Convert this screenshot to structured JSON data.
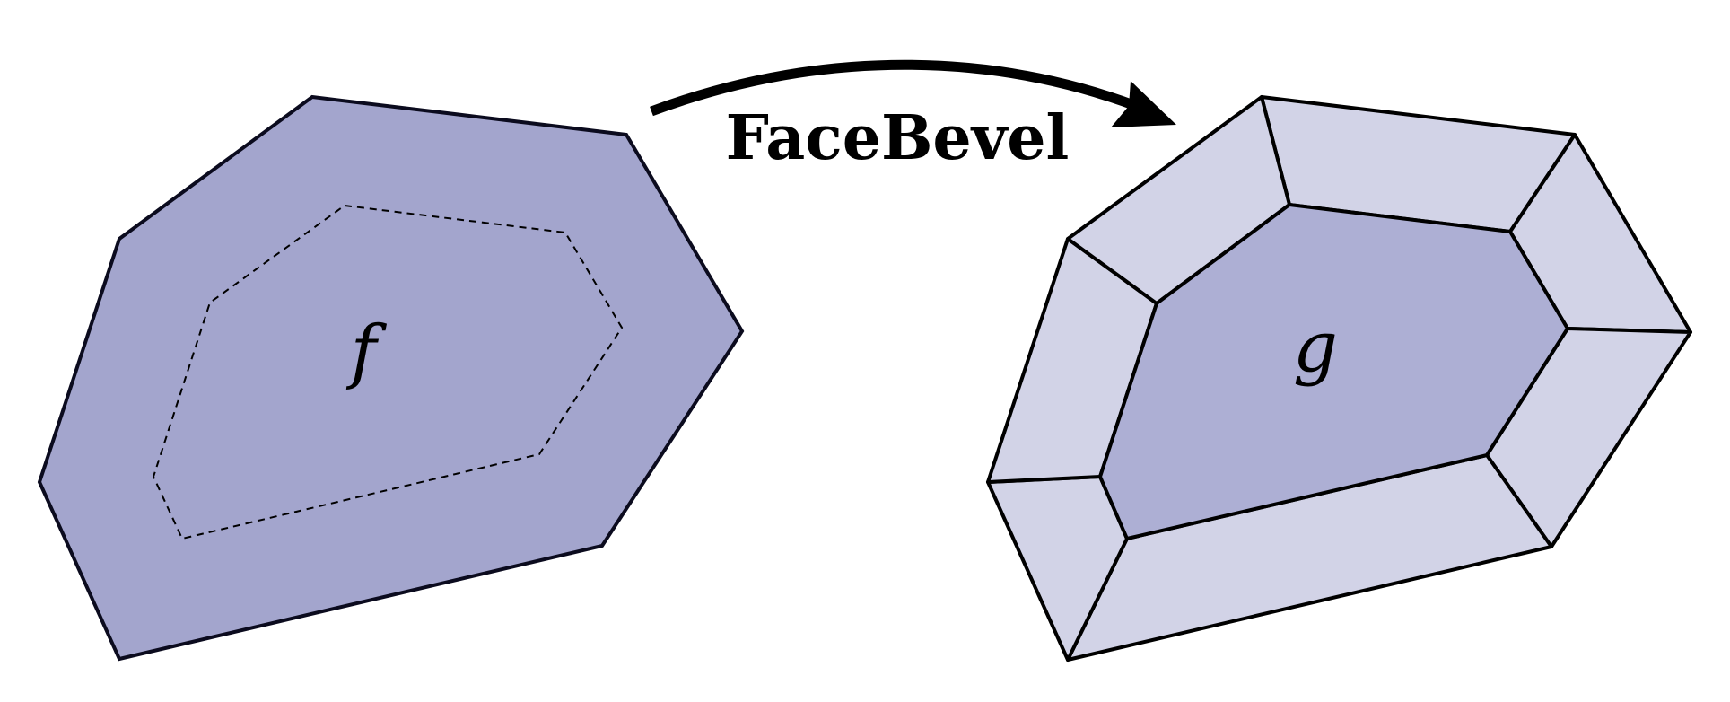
{
  "operation": {
    "label": "FaceBevel"
  },
  "input_face": {
    "label": "f",
    "fill_color": "#a3a5cd",
    "outline_color": "#0b0b1e"
  },
  "output_face": {
    "label": "g",
    "inner_fill_color": "#adafd4",
    "bevel_fill_color": "#d2d3e7",
    "outline_color": "#000000"
  }
}
